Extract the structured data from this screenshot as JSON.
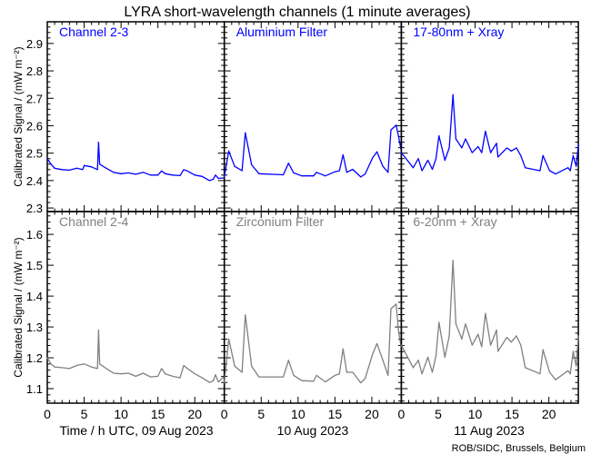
{
  "chart_data": {
    "type": "line",
    "title": "LYRA short-wavelength channels (1 minute averages)",
    "ylabel": "Calibrated Signal / (mW m⁻²)",
    "xlabels": [
      "Time / h UTC, 09 Aug 2023",
      "10 Aug 2023",
      "11 Aug 2023"
    ],
    "xticks": [
      0,
      5,
      10,
      15,
      20
    ],
    "xtick_labels": [
      "0",
      "5",
      "10",
      "15",
      "20"
    ],
    "xlim": [
      0,
      24
    ],
    "credit": "ROB/SIDC, Brussels, Belgium",
    "rows": [
      {
        "ylim": [
          2.287,
          2.979
        ],
        "yticks": [
          2.3,
          2.4,
          2.5,
          2.6,
          2.7,
          2.8,
          2.9
        ],
        "ytick_labels": [
          "2.3",
          "2.4",
          "2.5",
          "2.6",
          "2.7",
          "2.8",
          "2.9"
        ],
        "color": "#0000ff",
        "panels": [
          {
            "name": "Channel 2-3",
            "points": [
              [
                0,
                2.48
              ],
              [
                0.5,
                2.46
              ],
              [
                1,
                2.445
              ],
              [
                2,
                2.44
              ],
              [
                3,
                2.438
              ],
              [
                4,
                2.445
              ],
              [
                4.8,
                2.44
              ],
              [
                5,
                2.455
              ],
              [
                6,
                2.45
              ],
              [
                6.8,
                2.44
              ],
              [
                6.95,
                2.54
              ],
              [
                7.1,
                2.46
              ],
              [
                8,
                2.445
              ],
              [
                9,
                2.43
              ],
              [
                10,
                2.425
              ],
              [
                11,
                2.428
              ],
              [
                12,
                2.423
              ],
              [
                13,
                2.43
              ],
              [
                14,
                2.42
              ],
              [
                15,
                2.42
              ],
              [
                15.5,
                2.435
              ],
              [
                16,
                2.425
              ],
              [
                17,
                2.42
              ],
              [
                18,
                2.418
              ],
              [
                18.5,
                2.44
              ],
              [
                19,
                2.435
              ],
              [
                20,
                2.42
              ],
              [
                21,
                2.415
              ],
              [
                22,
                2.4
              ],
              [
                22.5,
                2.405
              ],
              [
                22.8,
                2.42
              ],
              [
                23.2,
                2.408
              ],
              [
                24,
                2.41
              ]
            ]
          },
          {
            "name": "Aluminium Filter",
            "points": [
              [
                0,
                2.413
              ],
              [
                0.6,
                2.508
              ],
              [
                1.4,
                2.452
              ],
              [
                2.4,
                2.436
              ],
              [
                2.85,
                2.574
              ],
              [
                3.7,
                2.458
              ],
              [
                4.7,
                2.425
              ],
              [
                8,
                2.421
              ],
              [
                8.7,
                2.463
              ],
              [
                9.4,
                2.428
              ],
              [
                10.5,
                2.417
              ],
              [
                12.1,
                2.417
              ],
              [
                12.5,
                2.43
              ],
              [
                13.7,
                2.417
              ],
              [
                15,
                2.432
              ],
              [
                15.6,
                2.436
              ],
              [
                16.1,
                2.494
              ],
              [
                16.6,
                2.43
              ],
              [
                17.4,
                2.441
              ],
              [
                18.5,
                2.413
              ],
              [
                19.1,
                2.424
              ],
              [
                20.1,
                2.483
              ],
              [
                20.7,
                2.505
              ],
              [
                21.5,
                2.452
              ],
              [
                22.2,
                2.43
              ],
              [
                22.6,
                2.585
              ],
              [
                23.3,
                2.602
              ],
              [
                23.6,
                2.563
              ],
              [
                24,
                2.508
              ]
            ]
          },
          {
            "name": "17-80nm + Xray",
            "points": [
              [
                0,
                2.502
              ],
              [
                1.6,
                2.447
              ],
              [
                2.3,
                2.48
              ],
              [
                2.8,
                2.436
              ],
              [
                3.6,
                2.474
              ],
              [
                4.2,
                2.441
              ],
              [
                4.7,
                2.48
              ],
              [
                5.1,
                2.563
              ],
              [
                5.9,
                2.474
              ],
              [
                6.5,
                2.519
              ],
              [
                7.0,
                2.713
              ],
              [
                7.4,
                2.552
              ],
              [
                8.2,
                2.519
              ],
              [
                8.7,
                2.552
              ],
              [
                9.6,
                2.502
              ],
              [
                10.4,
                2.524
              ],
              [
                10.9,
                2.502
              ],
              [
                11.4,
                2.58
              ],
              [
                12.1,
                2.502
              ],
              [
                12.9,
                2.536
              ],
              [
                13.1,
                2.486
              ],
              [
                14.3,
                2.519
              ],
              [
                14.9,
                2.508
              ],
              [
                15.6,
                2.519
              ],
              [
                16.2,
                2.491
              ],
              [
                16.8,
                2.447
              ],
              [
                18.8,
                2.436
              ],
              [
                19.2,
                2.491
              ],
              [
                20.1,
                2.436
              ],
              [
                20.9,
                2.424
              ],
              [
                22.6,
                2.447
              ],
              [
                22.9,
                2.436
              ],
              [
                23.3,
                2.491
              ],
              [
                23.7,
                2.452
              ],
              [
                24,
                2.53
              ]
            ]
          }
        ]
      },
      {
        "ylim": [
          1.053,
          1.674
        ],
        "yticks": [
          1.1,
          1.2,
          1.3,
          1.4,
          1.5,
          1.6
        ],
        "ytick_labels": [
          "1.1",
          "1.2",
          "1.3",
          "1.4",
          "1.5",
          "1.6"
        ],
        "color": "#808080",
        "panels": [
          {
            "name": "Channel 2-4",
            "points": [
              [
                0,
                1.2
              ],
              [
                0.5,
                1.18
              ],
              [
                1,
                1.17
              ],
              [
                2,
                1.168
              ],
              [
                3,
                1.165
              ],
              [
                4,
                1.175
              ],
              [
                5,
                1.18
              ],
              [
                6,
                1.17
              ],
              [
                6.8,
                1.165
              ],
              [
                6.95,
                1.29
              ],
              [
                7.1,
                1.18
              ],
              [
                8,
                1.165
              ],
              [
                9,
                1.15
              ],
              [
                10,
                1.148
              ],
              [
                11,
                1.15
              ],
              [
                12,
                1.14
              ],
              [
                13,
                1.15
              ],
              [
                14,
                1.138
              ],
              [
                15,
                1.14
              ],
              [
                15.5,
                1.165
              ],
              [
                16,
                1.148
              ],
              [
                17,
                1.14
              ],
              [
                18,
                1.135
              ],
              [
                18.5,
                1.175
              ],
              [
                19,
                1.165
              ],
              [
                20,
                1.148
              ],
              [
                21,
                1.135
              ],
              [
                22,
                1.12
              ],
              [
                22.5,
                1.125
              ],
              [
                22.8,
                1.145
              ],
              [
                23.2,
                1.122
              ],
              [
                24,
                1.14
              ]
            ]
          },
          {
            "name": "Zirconium Filter",
            "points": [
              [
                0,
                1.119
              ],
              [
                0.6,
                1.261
              ],
              [
                1.4,
                1.173
              ],
              [
                2.4,
                1.153
              ],
              [
                2.85,
                1.339
              ],
              [
                3.7,
                1.173
              ],
              [
                4.7,
                1.138
              ],
              [
                8,
                1.138
              ],
              [
                8.7,
                1.192
              ],
              [
                9.4,
                1.143
              ],
              [
                10.5,
                1.126
              ],
              [
                12.1,
                1.124
              ],
              [
                12.5,
                1.143
              ],
              [
                13.7,
                1.122
              ],
              [
                15,
                1.143
              ],
              [
                15.6,
                1.148
              ],
              [
                16.1,
                1.229
              ],
              [
                16.6,
                1.153
              ],
              [
                17.4,
                1.153
              ],
              [
                18.5,
                1.119
              ],
              [
                19.1,
                1.133
              ],
              [
                20.1,
                1.212
              ],
              [
                20.7,
                1.246
              ],
              [
                21.5,
                1.192
              ],
              [
                22.2,
                1.143
              ],
              [
                22.6,
                1.359
              ],
              [
                23.3,
                1.374
              ],
              [
                23.6,
                1.29
              ],
              [
                24,
                1.231
              ]
            ]
          },
          {
            "name": "6-20nm + Xray",
            "points": [
              [
                0,
                1.241
              ],
              [
                1.6,
                1.168
              ],
              [
                2.3,
                1.192
              ],
              [
                2.8,
                1.148
              ],
              [
                3.6,
                1.202
              ],
              [
                4.2,
                1.153
              ],
              [
                4.7,
                1.207
              ],
              [
                5.1,
                1.315
              ],
              [
                5.9,
                1.202
              ],
              [
                6.5,
                1.271
              ],
              [
                7.0,
                1.516
              ],
              [
                7.4,
                1.31
              ],
              [
                8.2,
                1.261
              ],
              [
                8.7,
                1.31
              ],
              [
                9.6,
                1.241
              ],
              [
                10.4,
                1.276
              ],
              [
                10.9,
                1.236
              ],
              [
                11.4,
                1.344
              ],
              [
                12.1,
                1.241
              ],
              [
                12.9,
                1.29
              ],
              [
                13.1,
                1.221
              ],
              [
                14.3,
                1.266
              ],
              [
                14.9,
                1.251
              ],
              [
                15.6,
                1.271
              ],
              [
                16.2,
                1.241
              ],
              [
                16.8,
                1.168
              ],
              [
                18.8,
                1.148
              ],
              [
                19.2,
                1.226
              ],
              [
                20.1,
                1.153
              ],
              [
                20.9,
                1.129
              ],
              [
                22.6,
                1.158
              ],
              [
                22.9,
                1.148
              ],
              [
                23.3,
                1.221
              ],
              [
                23.7,
                1.173
              ],
              [
                24,
                1.271
              ]
            ]
          }
        ]
      }
    ]
  }
}
